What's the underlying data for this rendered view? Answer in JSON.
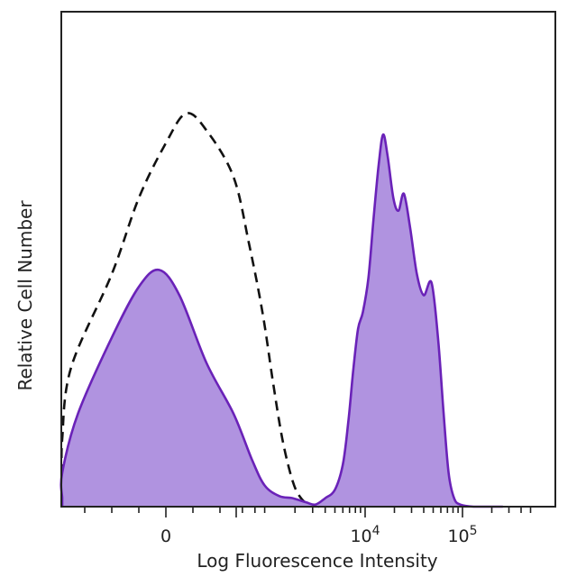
{
  "chart_data": {
    "type": "area",
    "title": "",
    "xlabel": "Log Fluorescence Intensity",
    "ylabel": "Relative Cell Number",
    "x_scale": "biexponential",
    "grid": false,
    "legend": "none",
    "x_ticks": [
      {
        "value": 0,
        "label": "0",
        "label_base": "",
        "label_exp": ""
      },
      {
        "value": 10000,
        "label": "10^4",
        "label_base": "10",
        "label_exp": "4"
      },
      {
        "value": 100000,
        "label": "10^5",
        "label_base": "10",
        "label_exp": "5"
      }
    ],
    "series": [
      {
        "style": "dashed",
        "color": "#111111",
        "fill": "none",
        "points": [
          [
            -2500,
            0.0
          ],
          [
            -1800,
            0.02
          ],
          [
            -1300,
            0.07
          ],
          [
            -1000,
            0.16
          ],
          [
            -700,
            0.33
          ],
          [
            -400,
            0.55
          ],
          [
            -200,
            0.73
          ],
          [
            0,
            0.86
          ],
          [
            150,
            0.93
          ],
          [
            300,
            0.89
          ],
          [
            500,
            0.78
          ],
          [
            700,
            0.62
          ],
          [
            950,
            0.46
          ],
          [
            1200,
            0.3
          ],
          [
            1500,
            0.16
          ],
          [
            1900,
            0.06
          ],
          [
            2300,
            0.02
          ],
          [
            2800,
            0.005
          ],
          [
            3500,
            0.0
          ]
        ]
      },
      {
        "style": "solid-filled",
        "color": "#6a22b8",
        "fill": "#b093e0",
        "points": [
          [
            -4500,
            0.0
          ],
          [
            -2200,
            0.005
          ],
          [
            -1200,
            0.02
          ],
          [
            -900,
            0.08
          ],
          [
            -650,
            0.22
          ],
          [
            -400,
            0.4
          ],
          [
            -200,
            0.52
          ],
          [
            -50,
            0.56
          ],
          [
            100,
            0.5
          ],
          [
            300,
            0.34
          ],
          [
            500,
            0.22
          ],
          [
            750,
            0.11
          ],
          [
            1000,
            0.05
          ],
          [
            1400,
            0.025
          ],
          [
            1900,
            0.02
          ],
          [
            2600,
            0.01
          ],
          [
            3200,
            0.005
          ],
          [
            4000,
            0.02
          ],
          [
            5000,
            0.04
          ],
          [
            6000,
            0.1
          ],
          [
            6800,
            0.2
          ],
          [
            7600,
            0.32
          ],
          [
            8500,
            0.42
          ],
          [
            9500,
            0.46
          ],
          [
            10800,
            0.54
          ],
          [
            12200,
            0.68
          ],
          [
            13800,
            0.81
          ],
          [
            15300,
            0.88
          ],
          [
            17000,
            0.83
          ],
          [
            19500,
            0.73
          ],
          [
            22000,
            0.7
          ],
          [
            25000,
            0.74
          ],
          [
            29000,
            0.66
          ],
          [
            34000,
            0.55
          ],
          [
            40000,
            0.5
          ],
          [
            48000,
            0.53
          ],
          [
            56000,
            0.4
          ],
          [
            64000,
            0.22
          ],
          [
            72000,
            0.08
          ],
          [
            82000,
            0.02
          ],
          [
            95000,
            0.005
          ],
          [
            130000,
            0.0
          ],
          [
            260000,
            0.0
          ]
        ]
      }
    ]
  }
}
